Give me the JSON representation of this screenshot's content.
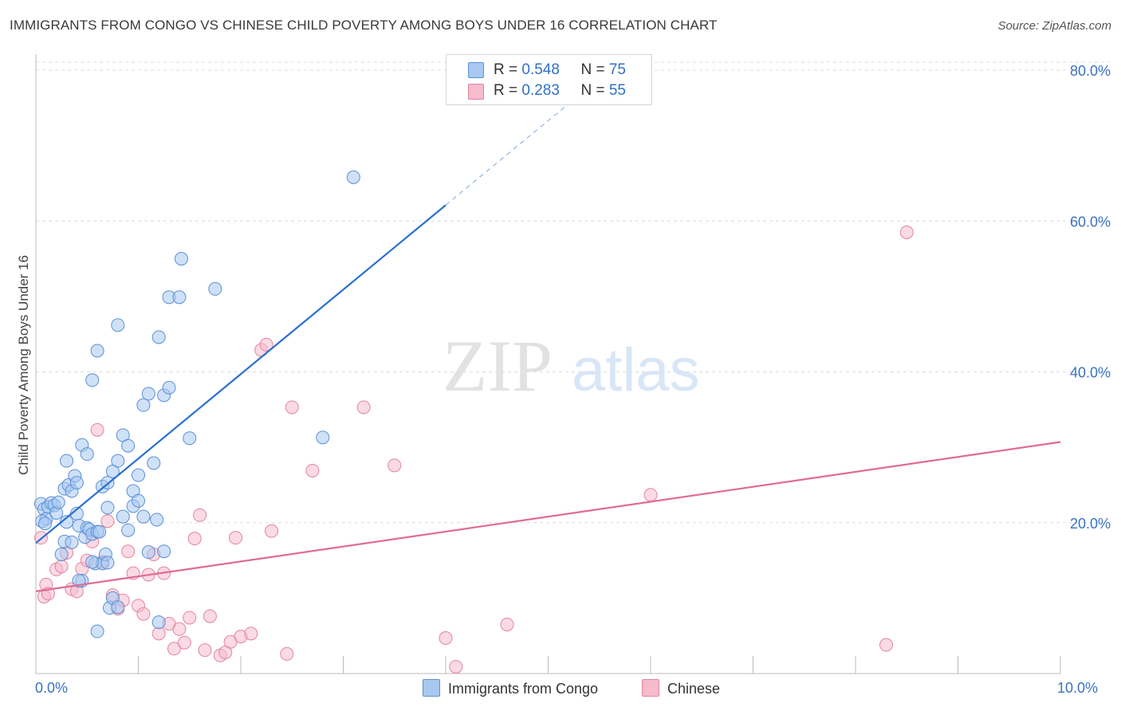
{
  "title": "IMMIGRANTS FROM CONGO VS CHINESE CHILD POVERTY AMONG BOYS UNDER 16 CORRELATION CHART",
  "source": "Source: ZipAtlas.com",
  "watermark": {
    "zip": "ZIP",
    "atlas": "atlas"
  },
  "colors": {
    "blue_fill": "#a8c8f0",
    "blue_stroke": "#5b8fd6",
    "blue_line": "#2a6fd0",
    "pink_fill": "#f5bccd",
    "pink_stroke": "#e2849f",
    "pink_line": "#e06b95",
    "tick_text": "#3a72c4",
    "grid": "#dcdcdc"
  },
  "legend": {
    "rows": [
      {
        "r_label": "R = ",
        "r_value": "0.548",
        "n_label": "N = ",
        "n_value": "75"
      },
      {
        "r_label": "R = ",
        "r_value": "0.283",
        "n_label": "N = ",
        "n_value": "55"
      }
    ]
  },
  "bottom_legend": {
    "blue": "Immigrants from Congo",
    "pink": "Chinese"
  },
  "chart_data": {
    "type": "scatter",
    "title": "IMMIGRANTS FROM CONGO VS CHINESE CHILD POVERTY AMONG BOYS UNDER 16 CORRELATION CHART",
    "xlabel": "",
    "ylabel": "Child Poverty Among Boys Under 16",
    "xlim": [
      0,
      10
    ],
    "ylim": [
      0,
      80
    ],
    "x_tick_labels": [
      "0.0%",
      "10.0%"
    ],
    "y_ticks": [
      20,
      40,
      60,
      80
    ],
    "y_tick_labels": [
      "20.0%",
      "40.0%",
      "60.0%",
      "80.0%"
    ],
    "grid": true,
    "legend_position": "top-center",
    "series": [
      {
        "name": "Immigrants from Congo",
        "color": "#a8c8f0",
        "trend": {
          "x": [
            0,
            4.0
          ],
          "y": [
            17.3,
            62.1
          ],
          "dashed_extension_to_x": 5.5
        },
        "points": [
          [
            0.05,
            22.5
          ],
          [
            0.08,
            21.8
          ],
          [
            0.1,
            20.5
          ],
          [
            0.12,
            22.1
          ],
          [
            0.15,
            22.6
          ],
          [
            0.18,
            22.3
          ],
          [
            0.2,
            21.3
          ],
          [
            0.22,
            22.7
          ],
          [
            0.06,
            20.2
          ],
          [
            0.09,
            19.9
          ],
          [
            0.25,
            15.8
          ],
          [
            0.28,
            17.5
          ],
          [
            0.3,
            20.1
          ],
          [
            0.35,
            17.4
          ],
          [
            0.4,
            21.2
          ],
          [
            0.42,
            19.6
          ],
          [
            0.45,
            12.3
          ],
          [
            0.48,
            18.1
          ],
          [
            0.5,
            19.3
          ],
          [
            0.52,
            19.1
          ],
          [
            0.55,
            18.5
          ],
          [
            0.58,
            14.6
          ],
          [
            0.6,
            18.8
          ],
          [
            0.65,
            14.6
          ],
          [
            0.68,
            15.8
          ],
          [
            0.7,
            14.7
          ],
          [
            0.72,
            8.7
          ],
          [
            0.75,
            10.0
          ],
          [
            0.8,
            8.8
          ],
          [
            0.85,
            20.8
          ],
          [
            0.9,
            19.0
          ],
          [
            0.95,
            22.2
          ],
          [
            1.0,
            26.3
          ],
          [
            1.05,
            20.8
          ],
          [
            1.1,
            16.1
          ],
          [
            1.15,
            27.9
          ],
          [
            1.2,
            6.8
          ],
          [
            1.25,
            36.9
          ],
          [
            1.3,
            37.9
          ],
          [
            1.5,
            31.2
          ],
          [
            0.28,
            24.5
          ],
          [
            0.3,
            28.2
          ],
          [
            0.32,
            25.0
          ],
          [
            0.35,
            24.2
          ],
          [
            0.38,
            26.2
          ],
          [
            0.4,
            25.3
          ],
          [
            0.45,
            30.3
          ],
          [
            0.5,
            29.1
          ],
          [
            0.55,
            38.9
          ],
          [
            0.6,
            42.8
          ],
          [
            0.65,
            24.8
          ],
          [
            0.7,
            25.3
          ],
          [
            0.75,
            26.8
          ],
          [
            0.8,
            28.2
          ],
          [
            0.85,
            31.6
          ],
          [
            0.9,
            30.2
          ],
          [
            0.95,
            24.2
          ],
          [
            1.0,
            22.9
          ],
          [
            1.05,
            35.6
          ],
          [
            1.1,
            37.1
          ],
          [
            1.2,
            44.6
          ],
          [
            1.3,
            49.9
          ],
          [
            1.4,
            49.9
          ],
          [
            1.42,
            55.0
          ],
          [
            1.75,
            51.0
          ],
          [
            0.8,
            46.2
          ],
          [
            0.6,
            5.6
          ],
          [
            2.8,
            31.3
          ],
          [
            3.1,
            65.8
          ],
          [
            0.7,
            22.0
          ],
          [
            1.25,
            16.2
          ],
          [
            1.18,
            20.4
          ],
          [
            0.55,
            14.8
          ],
          [
            0.62,
            18.8
          ],
          [
            0.42,
            12.3
          ]
        ]
      },
      {
        "name": "Chinese",
        "color": "#f5bccd",
        "trend": {
          "x": [
            0,
            10.0
          ],
          "y": [
            10.9,
            30.7
          ]
        },
        "points": [
          [
            0.05,
            18.0
          ],
          [
            0.08,
            10.2
          ],
          [
            0.1,
            11.8
          ],
          [
            0.12,
            10.6
          ],
          [
            0.2,
            13.8
          ],
          [
            0.25,
            14.2
          ],
          [
            0.3,
            16.0
          ],
          [
            0.35,
            11.2
          ],
          [
            0.4,
            10.9
          ],
          [
            0.45,
            13.9
          ],
          [
            0.5,
            15.0
          ],
          [
            0.55,
            17.5
          ],
          [
            0.6,
            32.3
          ],
          [
            0.65,
            14.8
          ],
          [
            0.7,
            20.2
          ],
          [
            0.75,
            10.4
          ],
          [
            0.8,
            8.6
          ],
          [
            0.85,
            9.7
          ],
          [
            0.9,
            16.2
          ],
          [
            0.95,
            13.3
          ],
          [
            1.0,
            9.0
          ],
          [
            1.05,
            7.9
          ],
          [
            1.1,
            13.1
          ],
          [
            1.15,
            15.8
          ],
          [
            1.2,
            5.3
          ],
          [
            1.25,
            13.3
          ],
          [
            1.3,
            6.6
          ],
          [
            1.35,
            3.3
          ],
          [
            1.4,
            5.9
          ],
          [
            1.45,
            4.1
          ],
          [
            1.5,
            7.4
          ],
          [
            1.6,
            21.0
          ],
          [
            1.7,
            7.6
          ],
          [
            1.8,
            2.4
          ],
          [
            1.85,
            2.8
          ],
          [
            1.9,
            4.2
          ],
          [
            1.95,
            18.0
          ],
          [
            2.0,
            4.9
          ],
          [
            2.1,
            5.3
          ],
          [
            2.2,
            42.9
          ],
          [
            2.25,
            43.6
          ],
          [
            2.3,
            18.9
          ],
          [
            2.45,
            2.6
          ],
          [
            2.5,
            35.3
          ],
          [
            2.7,
            26.9
          ],
          [
            3.2,
            35.3
          ],
          [
            3.5,
            27.6
          ],
          [
            4.0,
            4.7
          ],
          [
            4.1,
            0.9
          ],
          [
            4.6,
            6.5
          ],
          [
            6.0,
            23.7
          ],
          [
            8.3,
            3.8
          ],
          [
            8.5,
            58.5
          ],
          [
            1.55,
            17.9
          ],
          [
            1.65,
            3.1
          ]
        ]
      }
    ]
  }
}
